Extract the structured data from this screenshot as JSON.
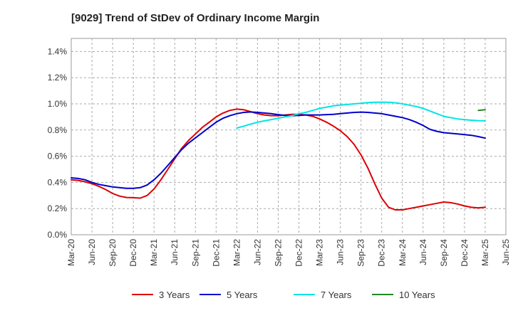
{
  "chart_data": {
    "type": "line",
    "title": "[9029]  Trend of StDev of Ordinary Income Margin",
    "xlabel": "",
    "ylabel": "",
    "x_tick_labels": [
      "Mar-20",
      "Jun-20",
      "Sep-20",
      "Dec-20",
      "Mar-21",
      "Jun-21",
      "Sep-21",
      "Dec-21",
      "Mar-22",
      "Jun-22",
      "Sep-22",
      "Dec-22",
      "Mar-23",
      "Jun-23",
      "Sep-23",
      "Dec-23",
      "Mar-24",
      "Jun-24",
      "Sep-24",
      "Dec-24",
      "Mar-25",
      "Jun-25"
    ],
    "y_ticks": [
      0.0,
      0.2,
      0.4,
      0.6,
      0.8,
      1.0,
      1.2,
      1.4
    ],
    "y_tick_labels": [
      "0.0%",
      "0.2%",
      "0.4%",
      "0.6%",
      "0.8%",
      "1.0%",
      "1.2%",
      "1.4%"
    ],
    "ylim": [
      0.0,
      1.5
    ],
    "grid": true,
    "legend_position": "bottom",
    "series": [
      {
        "name": "3 Years",
        "color": "#dd0000",
        "x": [
          "2020-03",
          "2020-04",
          "2020-05",
          "2020-06",
          "2020-07",
          "2020-08",
          "2020-09",
          "2020-10",
          "2020-11",
          "2020-12",
          "2021-01",
          "2021-02",
          "2021-03",
          "2021-04",
          "2021-05",
          "2021-06",
          "2021-07",
          "2021-08",
          "2021-09",
          "2021-10",
          "2021-11",
          "2021-12",
          "2022-01",
          "2022-02",
          "2022-03",
          "2022-04",
          "2022-05",
          "2022-06",
          "2022-07",
          "2022-08",
          "2022-09",
          "2022-10",
          "2022-11",
          "2022-12",
          "2023-01",
          "2023-02",
          "2023-03",
          "2023-04",
          "2023-05",
          "2023-06",
          "2023-07",
          "2023-08",
          "2023-09",
          "2023-10",
          "2023-11",
          "2023-12",
          "2024-01",
          "2024-02",
          "2024-03",
          "2024-04",
          "2024-05",
          "2024-06",
          "2024-07",
          "2024-08",
          "2024-09",
          "2024-10",
          "2024-11",
          "2024-12",
          "2025-01",
          "2025-02",
          "2025-03"
        ],
        "values": [
          0.42,
          0.415,
          0.405,
          0.39,
          0.37,
          0.345,
          0.315,
          0.295,
          0.285,
          0.283,
          0.28,
          0.3,
          0.35,
          0.42,
          0.5,
          0.58,
          0.66,
          0.72,
          0.77,
          0.82,
          0.86,
          0.9,
          0.93,
          0.95,
          0.96,
          0.955,
          0.94,
          0.925,
          0.915,
          0.91,
          0.91,
          0.915,
          0.92,
          0.92,
          0.915,
          0.905,
          0.885,
          0.86,
          0.83,
          0.795,
          0.75,
          0.69,
          0.61,
          0.51,
          0.39,
          0.28,
          0.21,
          0.19,
          0.19,
          0.2,
          0.21,
          0.22,
          0.23,
          0.24,
          0.25,
          0.245,
          0.235,
          0.22,
          0.21,
          0.205,
          0.21
        ]
      },
      {
        "name": "5 Years",
        "color": "#0000cc",
        "x": [
          "2020-03",
          "2020-04",
          "2020-05",
          "2020-06",
          "2020-07",
          "2020-08",
          "2020-09",
          "2020-10",
          "2020-11",
          "2020-12",
          "2021-01",
          "2021-02",
          "2021-03",
          "2021-04",
          "2021-05",
          "2021-06",
          "2021-07",
          "2021-08",
          "2021-09",
          "2021-10",
          "2021-11",
          "2021-12",
          "2022-01",
          "2022-02",
          "2022-03",
          "2022-04",
          "2022-05",
          "2022-06",
          "2022-07",
          "2022-08",
          "2022-09",
          "2022-10",
          "2022-11",
          "2022-12",
          "2023-01",
          "2023-02",
          "2023-03",
          "2023-04",
          "2023-05",
          "2023-06",
          "2023-07",
          "2023-08",
          "2023-09",
          "2023-10",
          "2023-11",
          "2023-12",
          "2024-01",
          "2024-02",
          "2024-03",
          "2024-04",
          "2024-05",
          "2024-06",
          "2024-07",
          "2024-08",
          "2024-09",
          "2024-10",
          "2024-11",
          "2024-12",
          "2025-01",
          "2025-02",
          "2025-03"
        ],
        "values": [
          0.435,
          0.43,
          0.42,
          0.4,
          0.385,
          0.375,
          0.365,
          0.36,
          0.355,
          0.355,
          0.36,
          0.38,
          0.42,
          0.47,
          0.53,
          0.59,
          0.65,
          0.7,
          0.74,
          0.78,
          0.82,
          0.86,
          0.89,
          0.91,
          0.925,
          0.935,
          0.938,
          0.935,
          0.93,
          0.925,
          0.918,
          0.912,
          0.91,
          0.912,
          0.915,
          0.915,
          0.915,
          0.918,
          0.92,
          0.925,
          0.93,
          0.935,
          0.937,
          0.935,
          0.93,
          0.925,
          0.915,
          0.905,
          0.895,
          0.88,
          0.86,
          0.835,
          0.805,
          0.79,
          0.78,
          0.775,
          0.77,
          0.765,
          0.76,
          0.75,
          0.738
        ]
      },
      {
        "name": "7 Years",
        "color": "#00e5e5",
        "x": [
          "2022-03",
          "2022-04",
          "2022-05",
          "2022-06",
          "2022-07",
          "2022-08",
          "2022-09",
          "2022-10",
          "2022-11",
          "2022-12",
          "2023-01",
          "2023-02",
          "2023-03",
          "2023-04",
          "2023-05",
          "2023-06",
          "2023-07",
          "2023-08",
          "2023-09",
          "2023-10",
          "2023-11",
          "2023-12",
          "2024-01",
          "2024-02",
          "2024-03",
          "2024-04",
          "2024-05",
          "2024-06",
          "2024-07",
          "2024-08",
          "2024-09",
          "2024-10",
          "2024-11",
          "2024-12",
          "2025-01",
          "2025-02",
          "2025-03"
        ],
        "values": [
          0.815,
          0.83,
          0.845,
          0.86,
          0.87,
          0.88,
          0.89,
          0.9,
          0.91,
          0.925,
          0.935,
          0.95,
          0.965,
          0.975,
          0.985,
          0.99,
          0.995,
          1.0,
          1.005,
          1.01,
          1.012,
          1.013,
          1.012,
          1.008,
          1.0,
          0.99,
          0.98,
          0.965,
          0.945,
          0.925,
          0.905,
          0.895,
          0.885,
          0.88,
          0.875,
          0.872,
          0.87
        ]
      },
      {
        "name": "10 Years",
        "color": "#228822",
        "x": [
          "2025-02",
          "2025-03"
        ],
        "values": [
          0.95,
          0.955
        ]
      }
    ]
  }
}
